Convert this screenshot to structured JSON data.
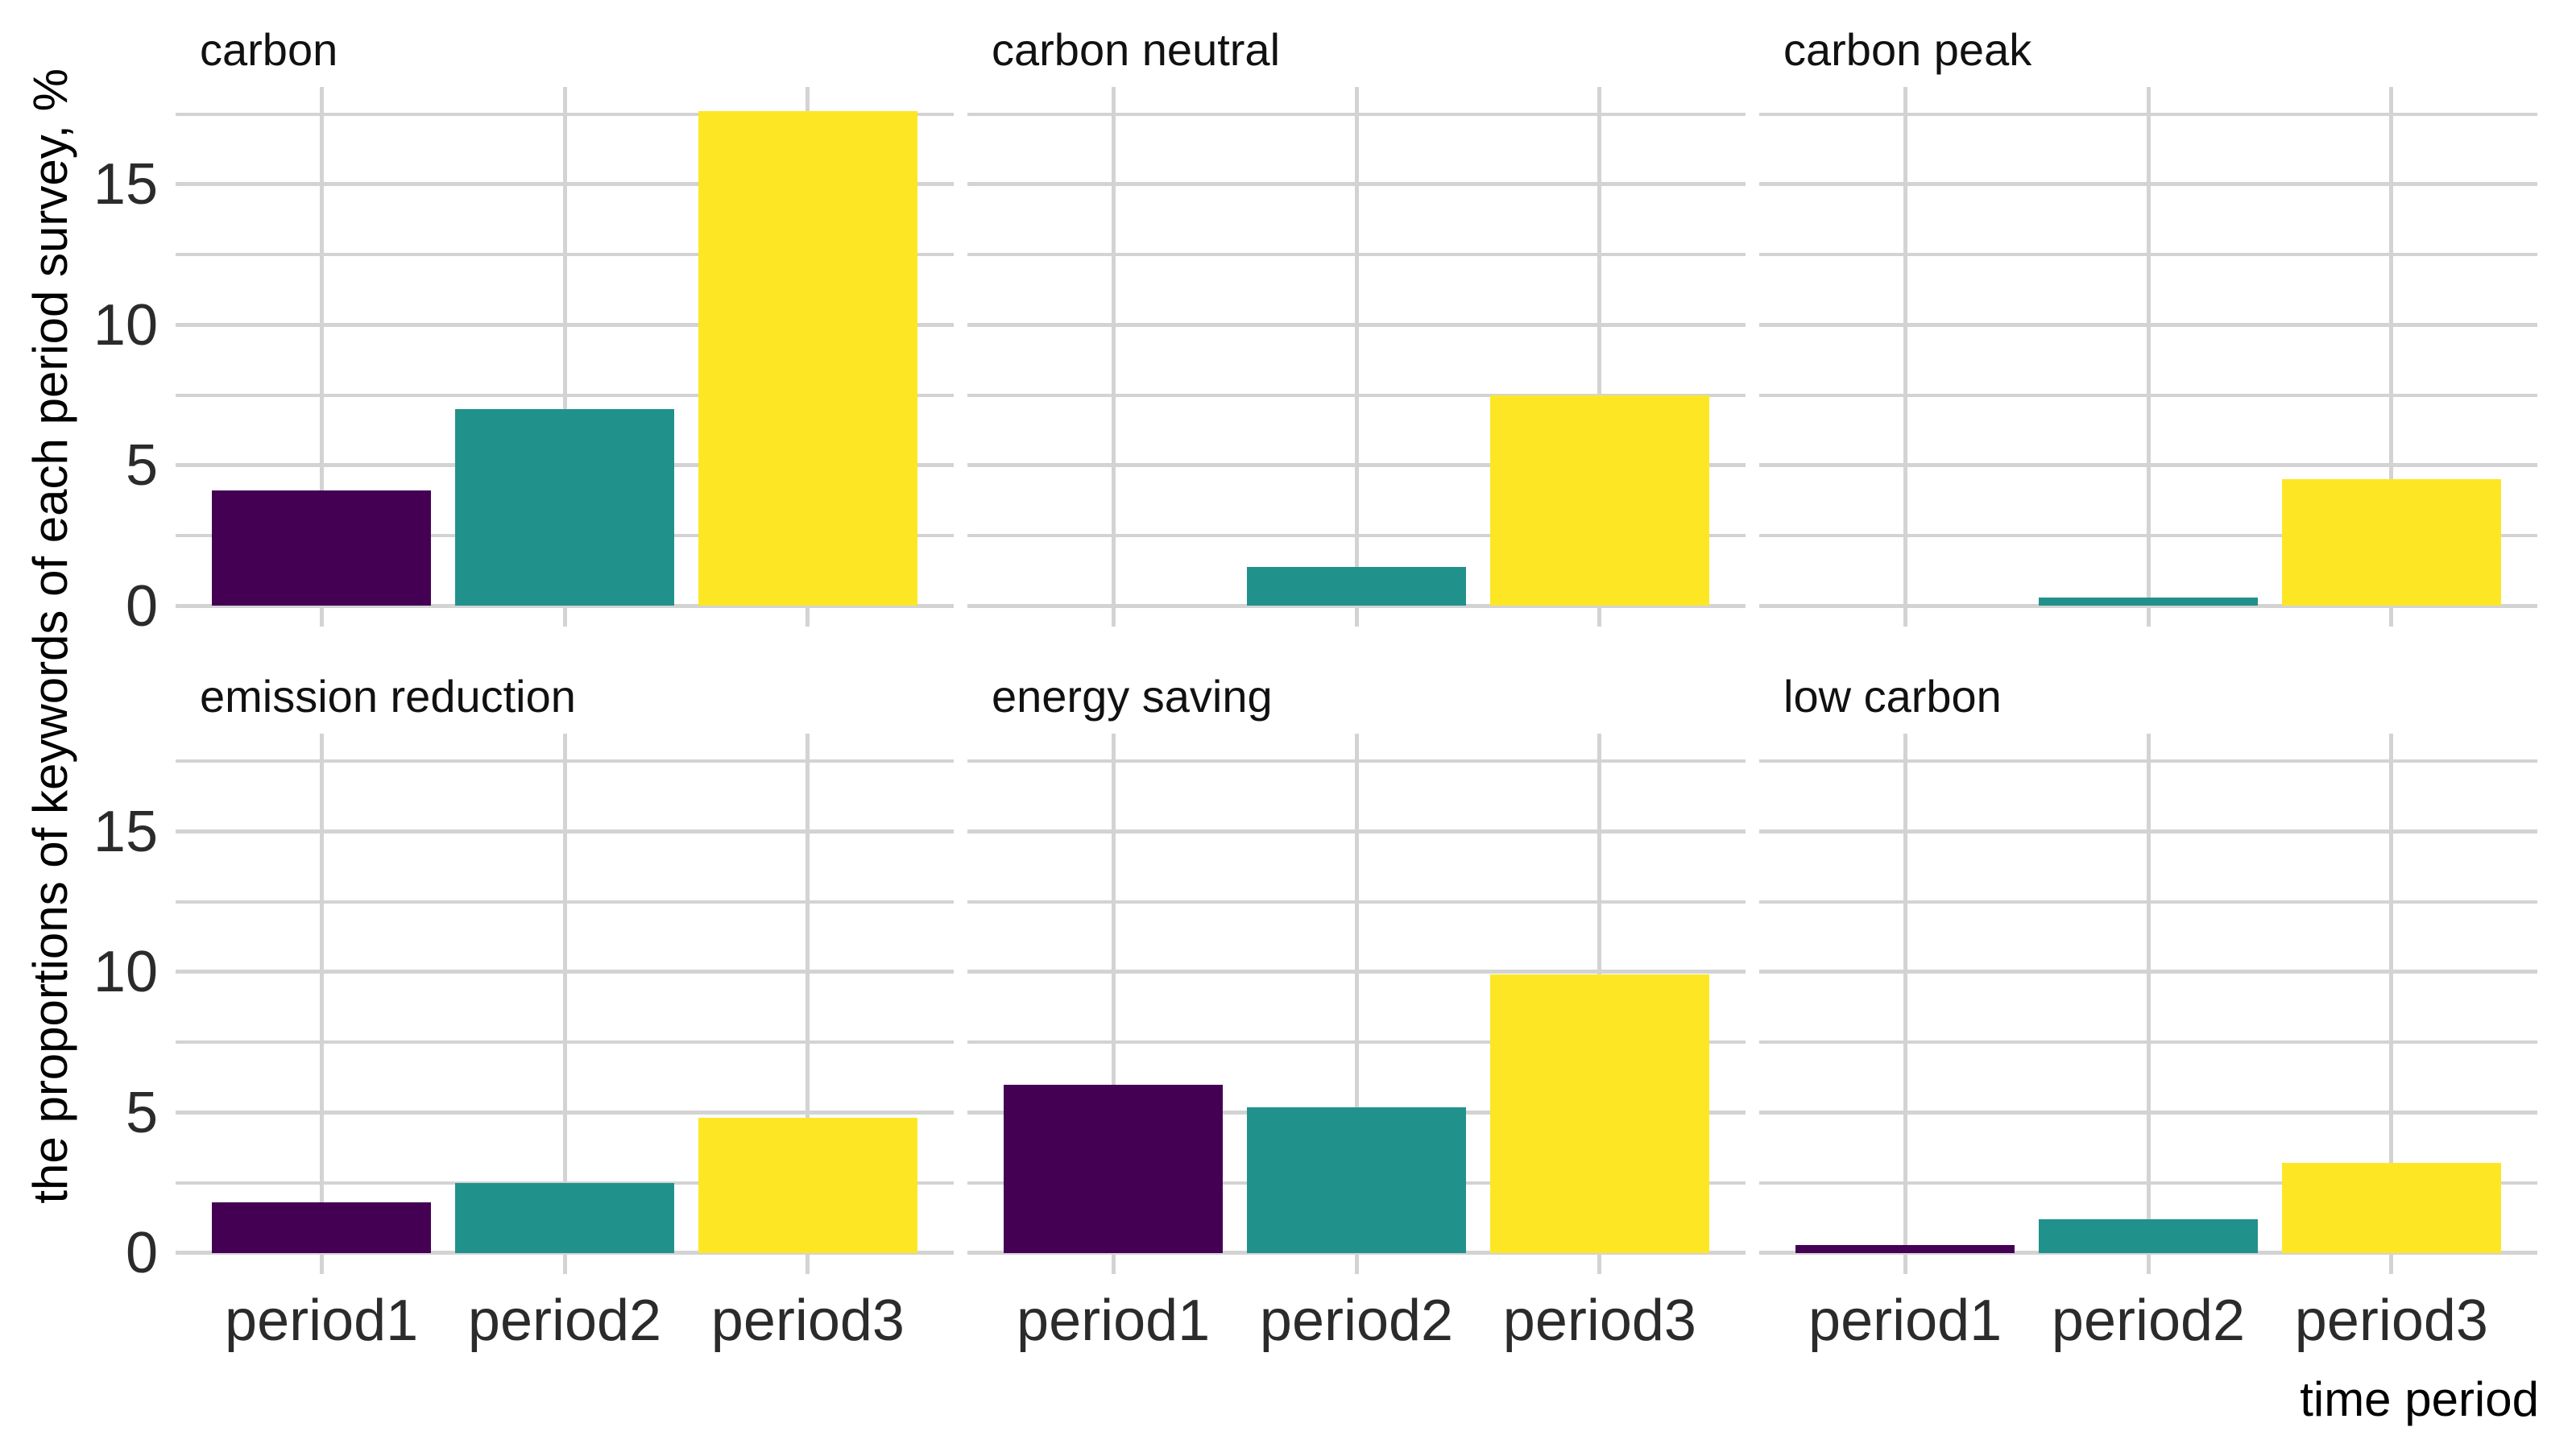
{
  "chart_data": {
    "type": "bar",
    "layout_hint": "facet-grid-2x3, grid on, no legend, white background",
    "categories": [
      "period1",
      "period2",
      "period3"
    ],
    "facets": [
      {
        "title": "carbon",
        "values": [
          4.1,
          7.0,
          17.6
        ]
      },
      {
        "title": "carbon neutral",
        "values": [
          0,
          1.4,
          7.5
        ]
      },
      {
        "title": "carbon peak",
        "values": [
          0,
          0.3,
          4.5
        ]
      },
      {
        "title": "emission reduction",
        "values": [
          1.8,
          2.5,
          4.8
        ]
      },
      {
        "title": "energy saving",
        "values": [
          6.0,
          5.2,
          9.9
        ]
      },
      {
        "title": "low carbon",
        "values": [
          0.3,
          1.2,
          3.2
        ]
      }
    ],
    "series_colors": {
      "period1": "#440154",
      "period2": "#21918c",
      "period3": "#fde725"
    },
    "xlabel": "time period",
    "ylabel": "the proportions of keywords of each period survey, %",
    "y_ticks": [
      0,
      5,
      10,
      15
    ],
    "y_tick_labels": [
      "0",
      "5",
      "10",
      "15"
    ],
    "y_minor_gridlines": [
      2.5,
      7.5,
      12.5,
      17.5
    ],
    "ylim": [
      0,
      18.5
    ],
    "grid_color": "#d3d3d3",
    "tick_text_color": "#2b2b2b",
    "title_text_color": "#111111"
  }
}
